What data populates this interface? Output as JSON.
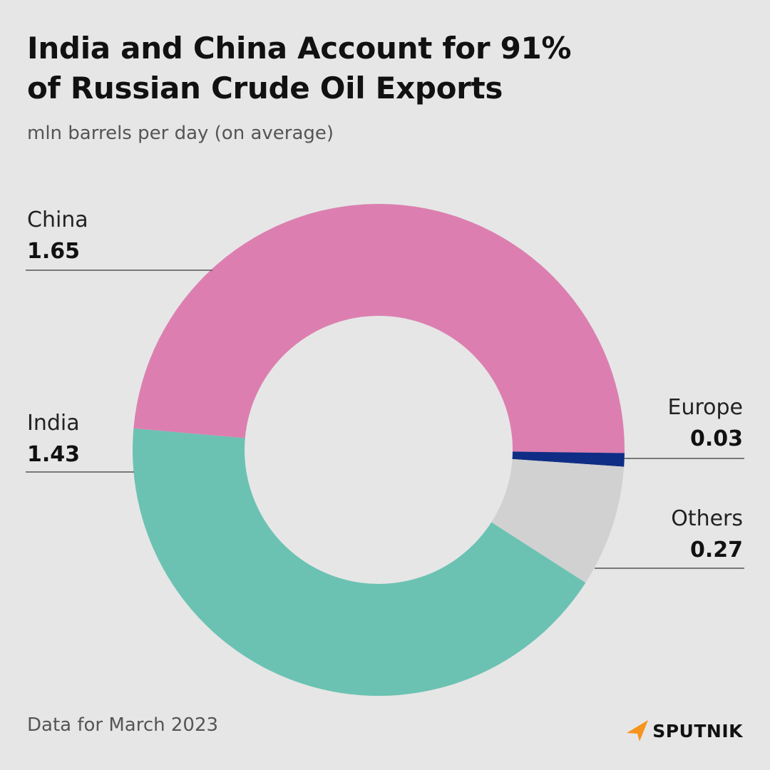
{
  "title_lines": [
    "India and China Account for 91%",
    "of Russian Crude Oil Exports"
  ],
  "subtitle": "mln barrels per day (on average)",
  "footnote": "Data for March 2023",
  "logo": {
    "text": "SPUTNIK",
    "accent": "#f7941d"
  },
  "colors": {
    "background": "#e6e6e6",
    "leader_line": "#555555"
  },
  "chart_data": {
    "type": "pie",
    "variant": "donut",
    "unit": "mln barrels per day (on average)",
    "slices": [
      {
        "label": "China",
        "value": 1.65,
        "display": "1.65",
        "color": "#dc7fb0",
        "label_side": "left"
      },
      {
        "label": "Europe",
        "value": 0.03,
        "display": "0.03",
        "color": "#0f2d85",
        "label_side": "right"
      },
      {
        "label": "Others",
        "value": 0.27,
        "display": "0.27",
        "color": "#d1d1d1",
        "label_side": "right"
      },
      {
        "label": "India",
        "value": 1.43,
        "display": "1.43",
        "color": "#6bc2b2",
        "label_side": "left"
      }
    ],
    "start_direction": "left, just above horizontal",
    "direction": "clockwise"
  }
}
